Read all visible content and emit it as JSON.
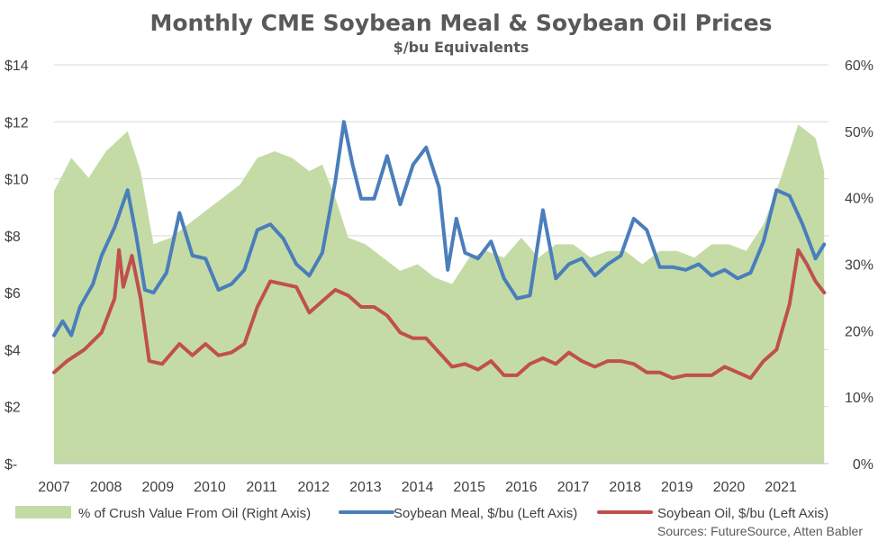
{
  "chart_data": {
    "type": "line",
    "title": "Monthly CME Soybean Meal & Soybean Oil Prices",
    "subtitle": "$/bu Equivalents",
    "x_start_year": 2007,
    "x_tick_labels": [
      "2007",
      "2008",
      "2009",
      "2010",
      "2011",
      "2012",
      "2013",
      "2014",
      "2015",
      "2016",
      "2017",
      "2018",
      "2019",
      "2020",
      "2021"
    ],
    "y_left": {
      "range": [
        0,
        14
      ],
      "tick_labels": [
        "$-",
        "$2",
        "$4",
        "$6",
        "$8",
        "$10",
        "$12",
        "$14"
      ]
    },
    "y_right": {
      "range": [
        0,
        60
      ],
      "tick_labels": [
        "0%",
        "10%",
        "20%",
        "30%",
        "40%",
        "50%",
        "60%"
      ]
    },
    "grid": true,
    "legend_position": "bottom",
    "source_note": "Sources: FutureSource, Atten Babler",
    "series": [
      {
        "name": "% of Crush Value From Oil (Right Axis)",
        "kind": "area",
        "axis": "right",
        "color": "#c5dba6",
        "points": [
          [
            "2007-01",
            41
          ],
          [
            "2007-05",
            46
          ],
          [
            "2007-09",
            43
          ],
          [
            "2008-01",
            47
          ],
          [
            "2008-06",
            50
          ],
          [
            "2008-09",
            44
          ],
          [
            "2008-12",
            33
          ],
          [
            "2009-04",
            34
          ],
          [
            "2009-08",
            36
          ],
          [
            "2009-12",
            38
          ],
          [
            "2010-04",
            40
          ],
          [
            "2010-08",
            42
          ],
          [
            "2010-12",
            46
          ],
          [
            "2011-04",
            47
          ],
          [
            "2011-08",
            46
          ],
          [
            "2011-12",
            44
          ],
          [
            "2012-03",
            45
          ],
          [
            "2012-06",
            40
          ],
          [
            "2012-09",
            34
          ],
          [
            "2013-01",
            33
          ],
          [
            "2013-05",
            31
          ],
          [
            "2013-09",
            29
          ],
          [
            "2014-01",
            30
          ],
          [
            "2014-05",
            28
          ],
          [
            "2014-09",
            27
          ],
          [
            "2015-01",
            31
          ],
          [
            "2015-05",
            32
          ],
          [
            "2015-09",
            31
          ],
          [
            "2016-01",
            34
          ],
          [
            "2016-05",
            31
          ],
          [
            "2016-09",
            33
          ],
          [
            "2017-01",
            33
          ],
          [
            "2017-05",
            31
          ],
          [
            "2017-09",
            32
          ],
          [
            "2018-01",
            32
          ],
          [
            "2018-05",
            30
          ],
          [
            "2018-09",
            32
          ],
          [
            "2019-01",
            32
          ],
          [
            "2019-05",
            31
          ],
          [
            "2019-09",
            33
          ],
          [
            "2020-01",
            33
          ],
          [
            "2020-05",
            32
          ],
          [
            "2020-09",
            36
          ],
          [
            "2021-01",
            43
          ],
          [
            "2021-05",
            51
          ],
          [
            "2021-09",
            49
          ],
          [
            "2021-11",
            44
          ]
        ]
      },
      {
        "name": "Soybean Meal, $/bu (Left Axis)",
        "kind": "line",
        "axis": "left",
        "color": "#4a7ebb",
        "points": [
          [
            "2007-01",
            4.5
          ],
          [
            "2007-03",
            5.0
          ],
          [
            "2007-05",
            4.5
          ],
          [
            "2007-07",
            5.5
          ],
          [
            "2007-10",
            6.3
          ],
          [
            "2007-12",
            7.3
          ],
          [
            "2008-03",
            8.3
          ],
          [
            "2008-06",
            9.6
          ],
          [
            "2008-08",
            8.0
          ],
          [
            "2008-10",
            6.1
          ],
          [
            "2008-12",
            6.0
          ],
          [
            "2009-03",
            6.7
          ],
          [
            "2009-06",
            8.8
          ],
          [
            "2009-09",
            7.3
          ],
          [
            "2009-12",
            7.2
          ],
          [
            "2010-03",
            6.1
          ],
          [
            "2010-06",
            6.3
          ],
          [
            "2010-09",
            6.8
          ],
          [
            "2010-12",
            8.2
          ],
          [
            "2011-03",
            8.4
          ],
          [
            "2011-06",
            7.9
          ],
          [
            "2011-09",
            7.0
          ],
          [
            "2011-12",
            6.6
          ],
          [
            "2012-03",
            7.4
          ],
          [
            "2012-06",
            9.9
          ],
          [
            "2012-08",
            12.0
          ],
          [
            "2012-10",
            10.5
          ],
          [
            "2012-12",
            9.3
          ],
          [
            "2013-03",
            9.3
          ],
          [
            "2013-06",
            10.8
          ],
          [
            "2013-09",
            9.1
          ],
          [
            "2013-12",
            10.5
          ],
          [
            "2014-03",
            11.1
          ],
          [
            "2014-06",
            9.7
          ],
          [
            "2014-08",
            6.8
          ],
          [
            "2014-10",
            8.6
          ],
          [
            "2014-12",
            7.4
          ],
          [
            "2015-03",
            7.2
          ],
          [
            "2015-06",
            7.8
          ],
          [
            "2015-09",
            6.5
          ],
          [
            "2015-12",
            5.8
          ],
          [
            "2016-03",
            5.9
          ],
          [
            "2016-06",
            8.9
          ],
          [
            "2016-09",
            6.5
          ],
          [
            "2016-12",
            7.0
          ],
          [
            "2017-03",
            7.2
          ],
          [
            "2017-06",
            6.6
          ],
          [
            "2017-09",
            7.0
          ],
          [
            "2017-12",
            7.3
          ],
          [
            "2018-03",
            8.6
          ],
          [
            "2018-06",
            8.2
          ],
          [
            "2018-09",
            6.9
          ],
          [
            "2018-12",
            6.9
          ],
          [
            "2019-03",
            6.8
          ],
          [
            "2019-06",
            7.0
          ],
          [
            "2019-09",
            6.6
          ],
          [
            "2019-12",
            6.8
          ],
          [
            "2020-03",
            6.5
          ],
          [
            "2020-06",
            6.7
          ],
          [
            "2020-09",
            7.8
          ],
          [
            "2020-12",
            9.6
          ],
          [
            "2021-03",
            9.4
          ],
          [
            "2021-06",
            8.4
          ],
          [
            "2021-09",
            7.2
          ],
          [
            "2021-11",
            7.7
          ]
        ]
      },
      {
        "name": "Soybean Oil, $/bu (Left Axis)",
        "kind": "line",
        "axis": "left",
        "color": "#c0504d",
        "points": [
          [
            "2007-01",
            3.2
          ],
          [
            "2007-04",
            3.6
          ],
          [
            "2007-08",
            4.0
          ],
          [
            "2007-12",
            4.6
          ],
          [
            "2008-03",
            5.8
          ],
          [
            "2008-04",
            7.5
          ],
          [
            "2008-05",
            6.2
          ],
          [
            "2008-07",
            7.3
          ],
          [
            "2008-09",
            5.8
          ],
          [
            "2008-11",
            3.6
          ],
          [
            "2009-02",
            3.5
          ],
          [
            "2009-06",
            4.2
          ],
          [
            "2009-09",
            3.8
          ],
          [
            "2009-12",
            4.2
          ],
          [
            "2010-03",
            3.8
          ],
          [
            "2010-06",
            3.9
          ],
          [
            "2010-09",
            4.2
          ],
          [
            "2010-12",
            5.5
          ],
          [
            "2011-03",
            6.4
          ],
          [
            "2011-06",
            6.3
          ],
          [
            "2011-09",
            6.2
          ],
          [
            "2011-12",
            5.3
          ],
          [
            "2012-03",
            5.7
          ],
          [
            "2012-06",
            6.1
          ],
          [
            "2012-09",
            5.9
          ],
          [
            "2012-12",
            5.5
          ],
          [
            "2013-03",
            5.5
          ],
          [
            "2013-06",
            5.2
          ],
          [
            "2013-09",
            4.6
          ],
          [
            "2013-12",
            4.4
          ],
          [
            "2014-03",
            4.4
          ],
          [
            "2014-06",
            3.9
          ],
          [
            "2014-09",
            3.4
          ],
          [
            "2014-12",
            3.5
          ],
          [
            "2015-03",
            3.3
          ],
          [
            "2015-06",
            3.6
          ],
          [
            "2015-09",
            3.1
          ],
          [
            "2015-12",
            3.1
          ],
          [
            "2016-03",
            3.5
          ],
          [
            "2016-06",
            3.7
          ],
          [
            "2016-09",
            3.5
          ],
          [
            "2016-12",
            3.9
          ],
          [
            "2017-03",
            3.6
          ],
          [
            "2017-06",
            3.4
          ],
          [
            "2017-09",
            3.6
          ],
          [
            "2017-12",
            3.6
          ],
          [
            "2018-03",
            3.5
          ],
          [
            "2018-06",
            3.2
          ],
          [
            "2018-09",
            3.2
          ],
          [
            "2018-12",
            3.0
          ],
          [
            "2019-03",
            3.1
          ],
          [
            "2019-06",
            3.1
          ],
          [
            "2019-09",
            3.1
          ],
          [
            "2019-12",
            3.4
          ],
          [
            "2020-03",
            3.2
          ],
          [
            "2020-06",
            3.0
          ],
          [
            "2020-09",
            3.6
          ],
          [
            "2020-12",
            4.0
          ],
          [
            "2021-03",
            5.6
          ],
          [
            "2021-05",
            7.5
          ],
          [
            "2021-07",
            7.0
          ],
          [
            "2021-09",
            6.4
          ],
          [
            "2021-11",
            6.0
          ]
        ]
      }
    ]
  }
}
